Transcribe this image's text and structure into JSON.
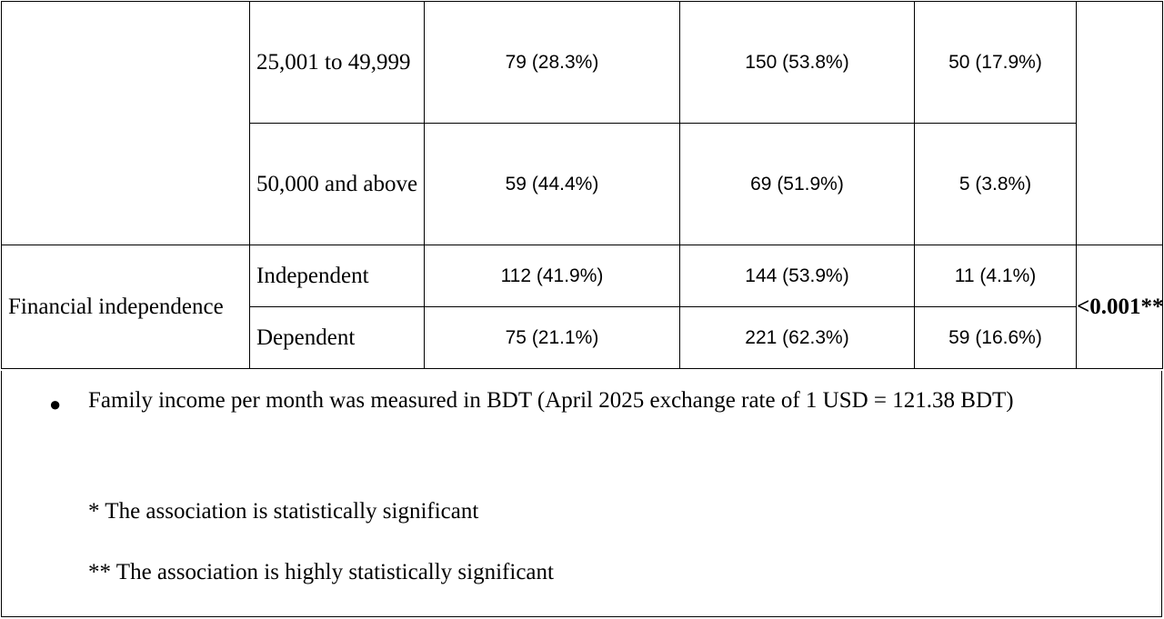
{
  "table": {
    "income_rows": [
      {
        "label": "25,001 to 49,999",
        "c1": "79 (28.3%)",
        "c2": "150 (53.8%)",
        "c3": "50 (17.9%)"
      },
      {
        "label": "50,000 and above",
        "c1": "59 (44.4%)",
        "c2": "69 (51.9%)",
        "c3": "5 (3.8%)"
      }
    ],
    "financial": {
      "variable": "Financial independence",
      "pvalue": "<0.001**",
      "rows": [
        {
          "label": "Independent",
          "c1": "112 (41.9%)",
          "c2": "144 (53.9%)",
          "c3": "11 (4.1%)"
        },
        {
          "label": "Dependent",
          "c1": "75 (21.1%)",
          "c2": "221 (62.3%)",
          "c3": "59 (16.6%)"
        }
      ]
    }
  },
  "notes": {
    "bullet": "Family income per month was measured in BDT (April 2025 exchange rate of 1 USD = 121.38 BDT)",
    "significant": "* The association is statistically significant",
    "highly_significant": "** The association is highly statistically significant"
  }
}
